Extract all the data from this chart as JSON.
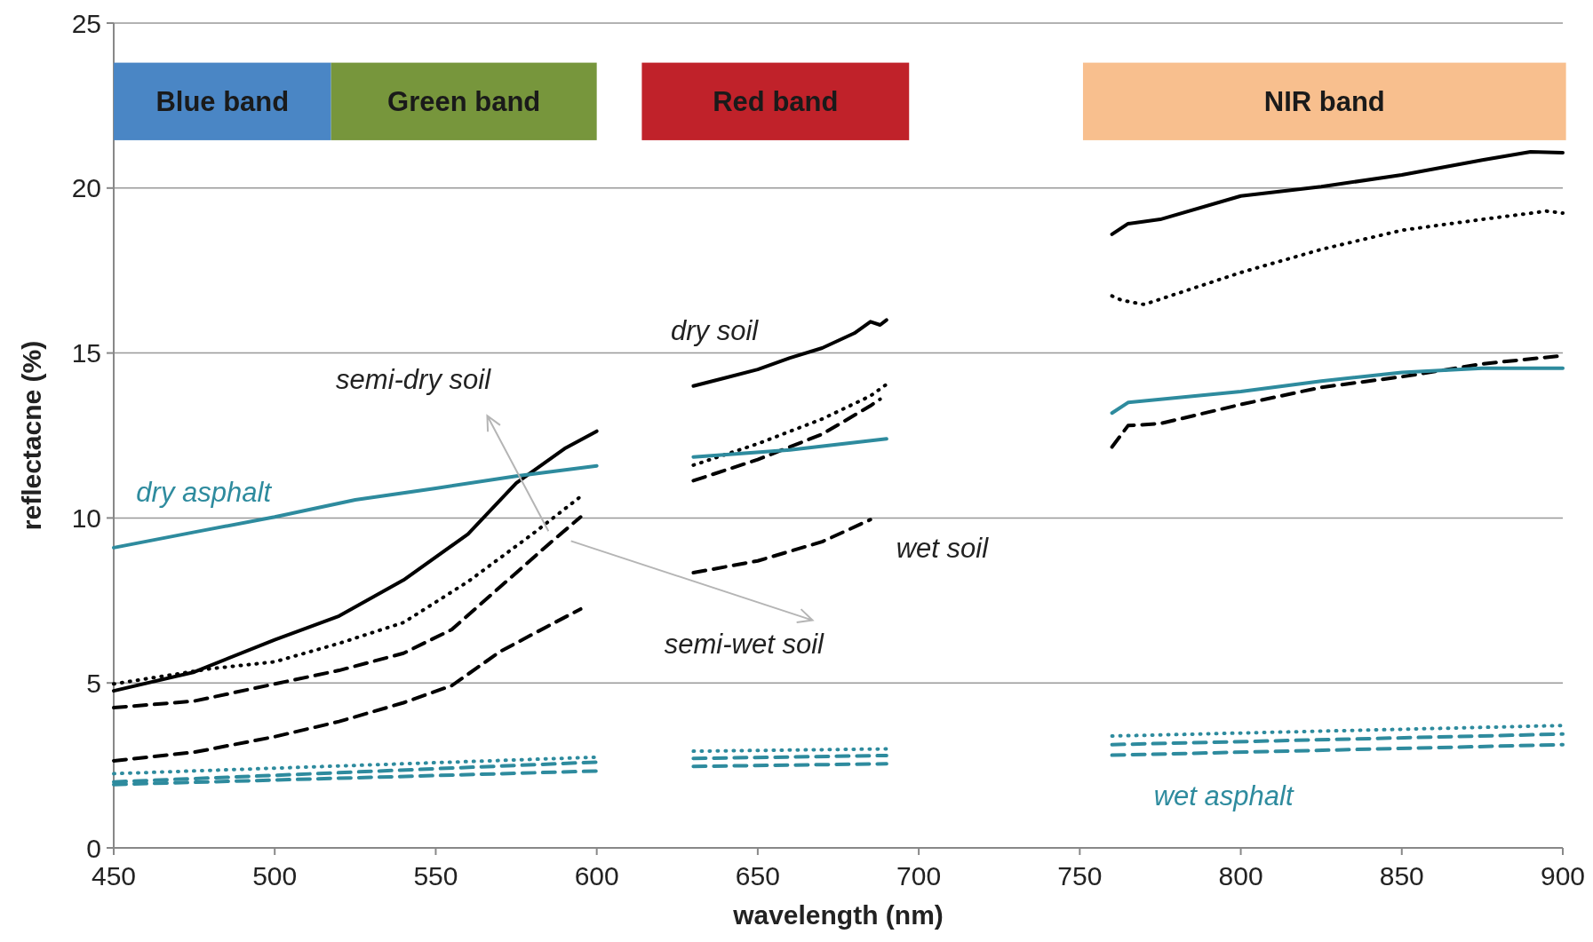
{
  "chart_data": {
    "type": "line",
    "xlabel": "wavelength (nm)",
    "ylabel": "reflectacne (%)",
    "xlim": [
      450,
      900
    ],
    "xticks": [
      450,
      500,
      550,
      600,
      650,
      700,
      750,
      800,
      850,
      900
    ],
    "ylim": [
      0,
      25
    ],
    "yticks": [
      0,
      5,
      10,
      15,
      20,
      25
    ],
    "grid": "y",
    "bands": [
      {
        "axis": "x",
        "from": 450,
        "to": 517.5,
        "label": "Blue band",
        "color": "#4a86c5"
      },
      {
        "axis": "x",
        "from": 517.5,
        "to": 600,
        "label": "Green band",
        "color": "#77963c"
      },
      {
        "axis": "x",
        "from": 614,
        "to": 697,
        "label": "Red band",
        "color": "#c0222a"
      },
      {
        "axis": "x",
        "from": 751,
        "to": 901,
        "label": "NIR band",
        "color": "#f8bf8e"
      }
    ],
    "series": [
      {
        "color": "#000000",
        "line_style": "solid",
        "x": [
          450,
          475,
          500,
          520,
          540,
          560,
          575,
          590,
          600
        ],
        "values": [
          4.76,
          5.33,
          6.31,
          7.03,
          8.12,
          9.51,
          11.06,
          12.1,
          12.63
        ]
      },
      {
        "name": "dry soil",
        "color": "#000000",
        "line_style": "solid",
        "x": [
          630,
          640,
          650,
          660,
          670,
          680,
          685,
          688,
          690
        ],
        "values": [
          14.0,
          14.25,
          14.5,
          14.85,
          15.15,
          15.6,
          15.95,
          15.85,
          16.0
        ]
      },
      {
        "color": "#000000",
        "line_style": "solid",
        "x": [
          760,
          765,
          775,
          800,
          825,
          850,
          875,
          890,
          900
        ],
        "values": [
          18.6,
          18.92,
          19.05,
          19.76,
          20.04,
          20.4,
          20.85,
          21.1,
          21.07
        ]
      },
      {
        "name": "semi-dry soil",
        "color": "#000000",
        "line_style": "dotted",
        "x": [
          450,
          480,
          500,
          520,
          540,
          560,
          580,
          595
        ],
        "values": [
          4.97,
          5.43,
          5.64,
          6.2,
          6.83,
          8.07,
          9.51,
          10.65
        ]
      },
      {
        "color": "#000000",
        "line_style": "dotted",
        "x": [
          630,
          650,
          670,
          685,
          690
        ],
        "values": [
          11.6,
          12.25,
          13.0,
          13.7,
          14.05
        ]
      },
      {
        "color": "#000000",
        "line_style": "dotted",
        "x": [
          760,
          763,
          770,
          800,
          825,
          850,
          875,
          895,
          900
        ],
        "values": [
          16.73,
          16.6,
          16.47,
          17.44,
          18.14,
          18.72,
          19.05,
          19.3,
          19.24
        ]
      },
      {
        "name": "semi-wet soil",
        "color": "#000000",
        "line_style": "dashed",
        "x": [
          450,
          475,
          500,
          520,
          540,
          555,
          570,
          585,
          595
        ],
        "values": [
          4.25,
          4.45,
          4.97,
          5.38,
          5.9,
          6.62,
          7.91,
          9.2,
          10.03
        ]
      },
      {
        "color": "#000000",
        "line_style": "dashed",
        "x": [
          630,
          650,
          670,
          685,
          688
        ],
        "values": [
          11.13,
          11.77,
          12.54,
          13.4,
          13.6
        ]
      },
      {
        "color": "#000000",
        "line_style": "dashed",
        "x": [
          760,
          765,
          775,
          800,
          825,
          850,
          875,
          900
        ],
        "values": [
          12.15,
          12.8,
          12.86,
          13.44,
          13.96,
          14.28,
          14.67,
          14.92
        ]
      },
      {
        "color": "#000000",
        "line_style": "dashed",
        "x": [
          450,
          475,
          500,
          520,
          540,
          555,
          570,
          585,
          595
        ],
        "values": [
          2.64,
          2.9,
          3.37,
          3.83,
          4.4,
          4.92,
          5.95,
          6.73,
          7.24
        ]
      },
      {
        "name": "wet soil",
        "color": "#000000",
        "line_style": "dashed",
        "x": [
          630,
          650,
          670,
          685
        ],
        "values": [
          8.34,
          8.7,
          9.28,
          9.95
        ]
      },
      {
        "name": "dry asphalt",
        "color": "#2e8b9e",
        "line_style": "solid",
        "x": [
          450,
          475,
          500,
          525,
          550,
          575,
          600
        ],
        "values": [
          9.1,
          9.57,
          10.03,
          10.55,
          10.9,
          11.27,
          11.58
        ]
      },
      {
        "color": "#2e8b9e",
        "line_style": "solid",
        "x": [
          630,
          660,
          690
        ],
        "values": [
          11.85,
          12.06,
          12.4
        ]
      },
      {
        "color": "#2e8b9e",
        "line_style": "solid",
        "x": [
          760,
          765,
          800,
          825,
          850,
          875,
          900
        ],
        "values": [
          13.18,
          13.5,
          13.83,
          14.15,
          14.41,
          14.54,
          14.54
        ]
      },
      {
        "color": "#2e8b9e",
        "line_style": "dashed",
        "x": [
          450,
          600
        ],
        "values": [
          2.0,
          2.6
        ]
      },
      {
        "color": "#2e8b9e",
        "line_style": "dashed",
        "x": [
          630,
          690
        ],
        "values": [
          2.71,
          2.8
        ]
      },
      {
        "name": "wet asphalt",
        "color": "#2e8b9e",
        "line_style": "dashed",
        "x": [
          760,
          900
        ],
        "values": [
          3.13,
          3.45
        ]
      },
      {
        "color": "#2e8b9e",
        "line_style": "dotted",
        "x": [
          450,
          600
        ],
        "values": [
          2.25,
          2.75
        ]
      },
      {
        "color": "#2e8b9e",
        "line_style": "dotted",
        "x": [
          630,
          690
        ],
        "values": [
          2.93,
          3.0
        ]
      },
      {
        "color": "#2e8b9e",
        "line_style": "dotted",
        "x": [
          760,
          900
        ],
        "values": [
          3.39,
          3.71
        ]
      },
      {
        "color": "#2e8b9e",
        "line_style": "dashed",
        "x": [
          450,
          600
        ],
        "values": [
          1.92,
          2.33
        ]
      },
      {
        "color": "#2e8b9e",
        "line_style": "dashed",
        "x": [
          630,
          690
        ],
        "values": [
          2.47,
          2.55
        ]
      },
      {
        "color": "#2e8b9e",
        "line_style": "dashed",
        "x": [
          760,
          900
        ],
        "values": [
          2.81,
          3.13
        ]
      }
    ]
  }
}
